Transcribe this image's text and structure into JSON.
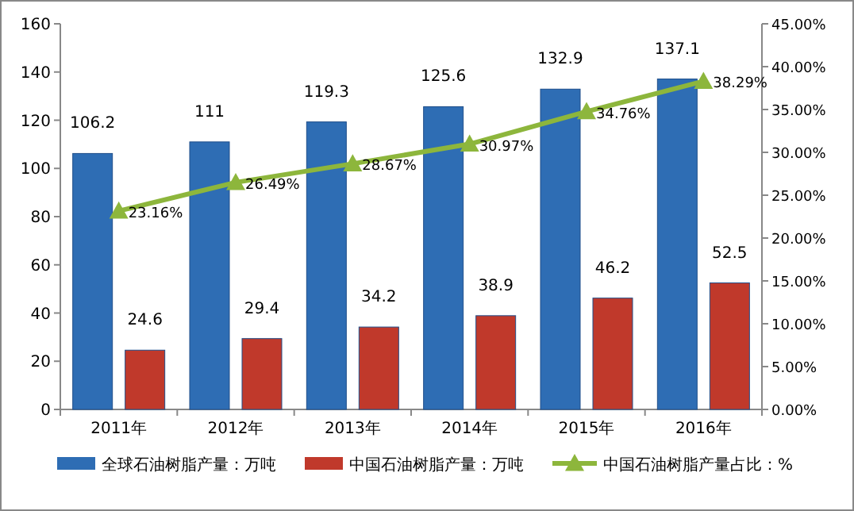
{
  "chart_data": {
    "type": "bar",
    "categories": [
      "2011年",
      "2012年",
      "2013年",
      "2014年",
      "2015年",
      "2016年"
    ],
    "series": [
      {
        "name": "全球石油树脂产量：万吨",
        "color": "#2e6db4",
        "values": [
          106.2,
          111,
          119.3,
          125.6,
          132.9,
          137.1
        ],
        "value_labels": [
          "106.2",
          "111",
          "119.3",
          "125.6",
          "132.9",
          "137.1"
        ]
      },
      {
        "name": "中国石油树脂产量：万吨",
        "color": "#c0392b",
        "values": [
          24.6,
          29.4,
          34.2,
          38.9,
          46.2,
          52.5
        ],
        "value_labels": [
          "24.6",
          "29.4",
          "34.2",
          "38.9",
          "46.2",
          "52.5"
        ]
      },
      {
        "name": "中国石油树脂产量占比：%",
        "type": "line",
        "axis": "y2",
        "color": "#8db63c",
        "values": [
          23.16,
          26.49,
          28.67,
          30.97,
          34.76,
          38.29
        ],
        "value_labels": [
          "23.16%",
          "26.49%",
          "28.67%",
          "30.97%",
          "34.76%",
          "38.29%"
        ]
      }
    ],
    "marker": "triangle",
    "legend": "bottom",
    "ylim": [
      0,
      160
    ],
    "yticks": [
      0,
      20,
      40,
      60,
      80,
      100,
      120,
      140,
      160
    ],
    "y2lim": [
      0,
      45
    ],
    "y2ticks": [
      {
        "value": 0,
        "label": "0.00%"
      },
      {
        "value": 5,
        "label": "5.00%"
      },
      {
        "value": 10,
        "label": "10.00%"
      },
      {
        "value": 15,
        "label": "15.00%"
      },
      {
        "value": 20,
        "label": "20.00%"
      },
      {
        "value": 25,
        "label": "25.00%"
      },
      {
        "value": 30,
        "label": "30.00%"
      },
      {
        "value": 35,
        "label": "35.00%"
      },
      {
        "value": 40,
        "label": "40.00%"
      },
      {
        "value": 45,
        "label": "45.00%"
      }
    ]
  }
}
